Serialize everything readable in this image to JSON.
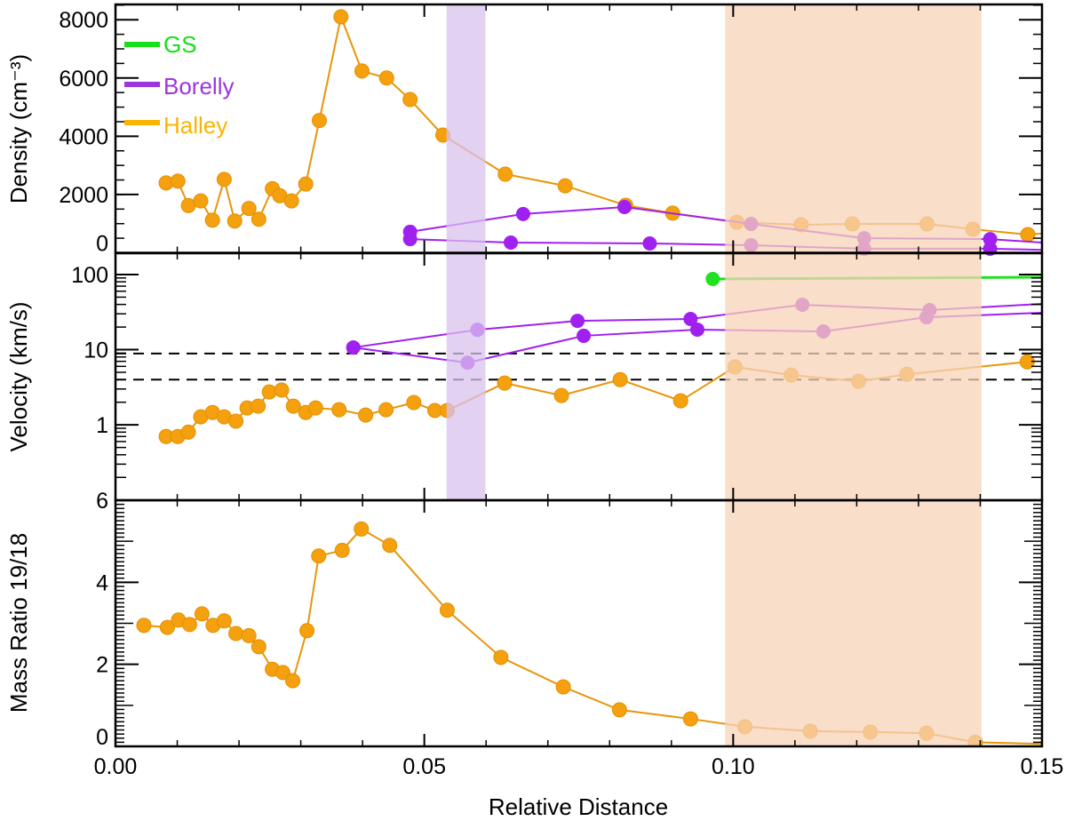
{
  "chart_data": {
    "type": "line",
    "xlabel": "Relative Distance",
    "xlim": [
      0,
      0.15
    ],
    "xticks": [
      "0.00",
      "0.05",
      "0.10",
      "0.15"
    ],
    "xtick_values": [
      0,
      0.05,
      0.1,
      0.15
    ],
    "legend": {
      "placement": "top-left",
      "entries": [
        {
          "name": "GS",
          "color": "#16e016"
        },
        {
          "name": "Borelly",
          "color": "#9b35dd"
        },
        {
          "name": "Halley",
          "color": "#fbb400"
        }
      ]
    },
    "colors": {
      "Halley": "#f5a00f",
      "HalleyLine": "#e8950a",
      "Borelly": "#a020f0",
      "GS": "#22e022",
      "shade_purple": "#d9c1ee",
      "shade_orange": "#f7d3b8"
    },
    "shaded_regions": [
      {
        "name": "purple-band",
        "x": [
          0.0536,
          0.0599
        ],
        "color": "#d9c1ee"
      },
      {
        "name": "orange-band",
        "x": [
          0.0987,
          0.1402
        ],
        "color": "#f7d3b8"
      }
    ],
    "panels": [
      {
        "name": "density",
        "ylabel": "Density (cm⁻³)",
        "scale": "linear",
        "ylim": [
          0,
          8525
        ],
        "yticks": [
          "0",
          "2000",
          "4000",
          "6000",
          "8000"
        ],
        "ytick_values": [
          0,
          2000,
          4000,
          6000,
          8000
        ],
        "minor_step": 500,
        "series": [
          {
            "name": "Halley",
            "color": "#f5a00f",
            "x": [
              0.0082,
              0.0101,
              0.0118,
              0.0138,
              0.0157,
              0.0176,
              0.0193,
              0.0216,
              0.0232,
              0.0254,
              0.0266,
              0.0285,
              0.0308,
              0.033,
              0.0365,
              0.0399,
              0.0439,
              0.0477,
              0.053,
              0.0631,
              0.0728,
              0.0826,
              0.0902,
              0.1006,
              0.111,
              0.1193,
              0.1314,
              0.1388,
              0.1477
            ],
            "y": [
              2400,
              2460,
              1620,
              1780,
              1120,
              2520,
              1090,
              1520,
              1150,
              2200,
              1960,
              1780,
              2360,
              4540,
              8100,
              6240,
              6000,
              5260,
              4040,
              2700,
              2300,
              1630,
              1360,
              1050,
              960,
              990,
              990,
              810,
              625
            ],
            "tail": [
              0.15,
              660
            ]
          },
          {
            "name": "Borelly (upper)",
            "color": "#a020f0",
            "x": [
              0.0477,
              0.066,
              0.0824,
              0.1029,
              0.1212,
              0.1416
            ],
            "y": [
              720,
              1330,
              1570,
              990,
              500,
              470
            ],
            "tail": [
              0.15,
              350
            ]
          },
          {
            "name": "Borelly (lower)",
            "color": "#a020f0",
            "x": [
              0.0477,
              0.064,
              0.0865,
              0.1029,
              0.1212,
              0.1416
            ],
            "y": [
              470,
              350,
              320,
              260,
              140,
              140
            ],
            "tail": [
              0.15,
              100
            ]
          }
        ]
      },
      {
        "name": "velocity",
        "ylabel": "Velocity (km/s)",
        "scale": "log",
        "ylim": [
          0.0993,
          192
        ],
        "yticks": [
          "1",
          "10",
          "100"
        ],
        "ytick_values": [
          1,
          10,
          100
        ],
        "reference_lines": [
          8.9,
          4.0
        ],
        "series": [
          {
            "name": "Halley",
            "color": "#f5a00f",
            "x": [
              0.0082,
              0.0101,
              0.0118,
              0.0138,
              0.0157,
              0.0176,
              0.0195,
              0.0213,
              0.0231,
              0.0249,
              0.0269,
              0.0288,
              0.0308,
              0.0324,
              0.0362,
              0.0405,
              0.0438,
              0.0483,
              0.0517,
              0.0537,
              0.063,
              0.0722,
              0.0817,
              0.0915,
              0.1003,
              0.1094,
              0.1203,
              0.1281,
              0.1476
            ],
            "y": [
              0.7,
              0.7,
              0.8,
              1.28,
              1.46,
              1.28,
              1.12,
              1.68,
              1.77,
              2.74,
              2.9,
              1.77,
              1.46,
              1.68,
              1.59,
              1.35,
              1.59,
              1.98,
              1.55,
              1.55,
              3.6,
              2.46,
              4.0,
              2.09,
              5.9,
              4.6,
              3.8,
              4.7,
              6.9
            ]
          },
          {
            "name": "Borelly (upper)",
            "color": "#a020f0",
            "x": [
              0.0385,
              0.0586,
              0.0748,
              0.0931,
              0.1112,
              0.1318
            ],
            "y": [
              10.7,
              18.4,
              24.2,
              25.6,
              39.6,
              33.6
            ],
            "tail": [
              0.15,
              40.7
            ]
          },
          {
            "name": "Borelly (lower)",
            "color": "#a020f0",
            "x": [
              0.0385,
              0.057,
              0.0758,
              0.0942,
              0.1146,
              0.1313
            ],
            "y": [
              10.7,
              6.7,
              15.3,
              18.5,
              17.5,
              27
            ],
            "tail": [
              0.15,
              31
            ]
          },
          {
            "name": "GS",
            "color": "#22e022",
            "x": [
              0.0967
            ],
            "y": [
              87.3
            ],
            "tail": [
              0.15,
              92
            ]
          }
        ]
      },
      {
        "name": "mass-ratio",
        "ylabel": "Mass Ratio 19/18",
        "scale": "linear",
        "ylim": [
          0,
          6.0
        ],
        "yticks": [
          "0",
          "2",
          "4",
          "6"
        ],
        "ytick_values": [
          0,
          2,
          4,
          6
        ],
        "minor_step": 0.1,
        "series": [
          {
            "name": "Halley",
            "color": "#f5a00f",
            "x": [
              0.0046,
              0.0084,
              0.0102,
              0.012,
              0.014,
              0.0158,
              0.0176,
              0.0195,
              0.0216,
              0.0232,
              0.0254,
              0.0271,
              0.0287,
              0.031,
              0.0329,
              0.0367,
              0.0398,
              0.0444,
              0.0537,
              0.0624,
              0.0725,
              0.0816,
              0.0931,
              0.1019,
              0.1125,
              0.1222,
              0.1313,
              0.1392
            ],
            "y": [
              2.95,
              2.9,
              3.08,
              2.97,
              3.23,
              2.95,
              3.06,
              2.75,
              2.7,
              2.43,
              1.88,
              1.8,
              1.6,
              2.82,
              4.64,
              4.78,
              5.3,
              4.9,
              3.32,
              2.17,
              1.45,
              0.89,
              0.67,
              0.48,
              0.37,
              0.35,
              0.32,
              0.1
            ],
            "tail": [
              0.15,
              0.06
            ]
          }
        ]
      }
    ]
  }
}
